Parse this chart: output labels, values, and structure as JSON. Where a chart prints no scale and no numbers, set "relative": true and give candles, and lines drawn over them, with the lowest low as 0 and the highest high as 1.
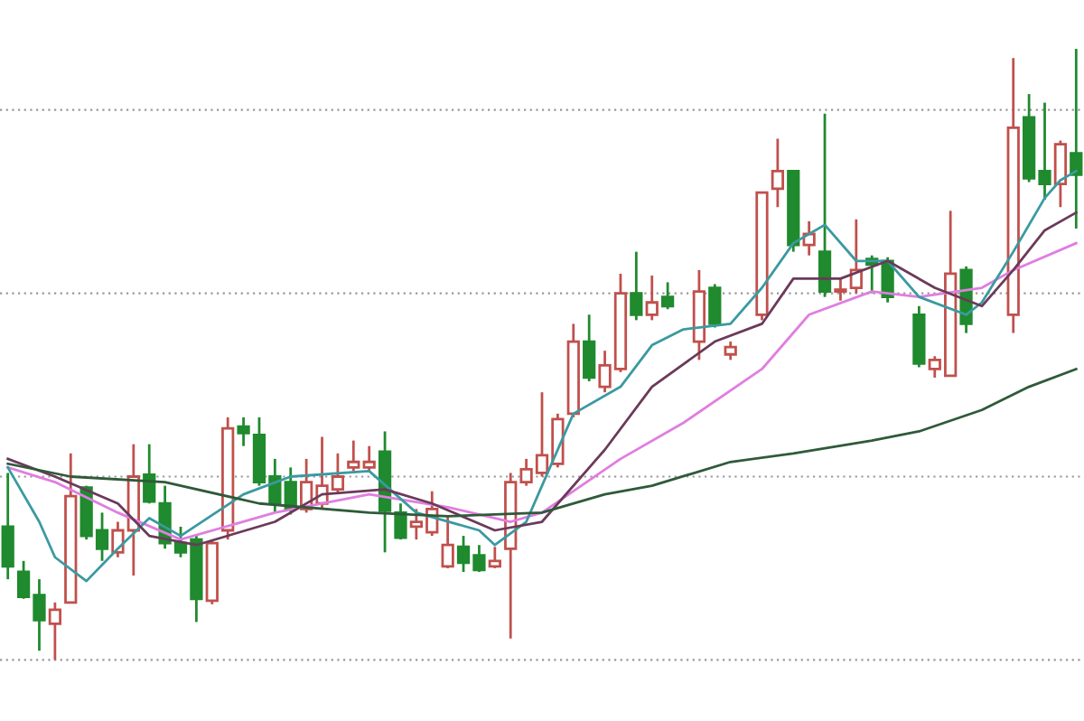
{
  "chart_data": {
    "type": "candlestick",
    "relative": true,
    "grid": "y",
    "categories": [
      null,
      null,
      null,
      null,
      null,
      null,
      null,
      null,
      null,
      null,
      null,
      null,
      null,
      null,
      null,
      null,
      null,
      null,
      null,
      null,
      null,
      null,
      null,
      null,
      null,
      null,
      null,
      null,
      null,
      null,
      null,
      null,
      null,
      null,
      null,
      null,
      null,
      null,
      null,
      null,
      null,
      null,
      null,
      null,
      null,
      null,
      null,
      null,
      null,
      null,
      null,
      null,
      null,
      null,
      null,
      null,
      null,
      null,
      null,
      null,
      null,
      null,
      null,
      null,
      null,
      null,
      null,
      null,
      null
    ],
    "ohlc": [
      [
        0.218,
        0.306,
        0.132,
        0.153
      ],
      [
        0.144,
        0.162,
        0.1,
        0.103
      ],
      [
        0.106,
        0.132,
        0.015,
        0.065
      ],
      [
        0.059,
        0.094,
        0,
        0.082
      ],
      [
        0.094,
        0.338,
        0.094,
        0.268
      ],
      [
        0.282,
        0.285,
        0.197,
        0.203
      ],
      [
        0.212,
        0.241,
        0.162,
        0.182
      ],
      [
        0.176,
        0.226,
        0.168,
        0.212
      ],
      [
        0.212,
        0.353,
        0.138,
        0.3
      ],
      [
        0.303,
        0.353,
        0.256,
        0.259
      ],
      [
        0.256,
        0.285,
        0.182,
        0.191
      ],
      [
        0.191,
        0.218,
        0.168,
        0.176
      ],
      [
        0.197,
        0.203,
        0.062,
        0.1
      ],
      [
        0.097,
        0.197,
        0.091,
        0.191
      ],
      [
        0.212,
        0.397,
        0.197,
        0.379
      ],
      [
        0.382,
        0.397,
        0.35,
        0.371
      ],
      [
        0.368,
        0.397,
        0.285,
        0.291
      ],
      [
        0.3,
        0.329,
        0.241,
        0.256
      ],
      [
        0.291,
        0.315,
        0.238,
        0.247
      ],
      [
        0.247,
        0.329,
        0.241,
        0.291
      ],
      [
        0.256,
        0.365,
        0.247,
        0.285
      ],
      [
        0.279,
        0.338,
        0.271,
        0.3
      ],
      [
        0.315,
        0.359,
        0.309,
        0.324
      ],
      [
        0.315,
        0.35,
        0.309,
        0.324
      ],
      [
        0.341,
        0.374,
        0.176,
        0.244
      ],
      [
        0.241,
        0.256,
        0.197,
        0.2
      ],
      [
        0.218,
        0.247,
        0.197,
        0.226
      ],
      [
        0.209,
        0.276,
        0.203,
        0.247
      ],
      [
        0.153,
        0.235,
        0.15,
        0.188
      ],
      [
        0.185,
        0.203,
        0.144,
        0.159
      ],
      [
        0.171,
        0.188,
        0.144,
        0.147
      ],
      [
        0.153,
        0.185,
        0.15,
        0.162
      ],
      [
        0.182,
        0.306,
        0.035,
        0.291
      ],
      [
        0.291,
        0.329,
        0.285,
        0.312
      ],
      [
        0.306,
        0.438,
        0.3,
        0.335
      ],
      [
        0.321,
        0.403,
        0.315,
        0.394
      ],
      [
        0.403,
        0.55,
        0.397,
        0.521
      ],
      [
        0.521,
        0.565,
        0.456,
        0.462
      ],
      [
        0.447,
        0.506,
        0.438,
        0.482
      ],
      [
        0.476,
        0.632,
        0.471,
        0.6
      ],
      [
        0.6,
        0.668,
        0.556,
        0.565
      ],
      [
        0.565,
        0.629,
        0.556,
        0.585
      ],
      [
        0.594,
        0.618,
        0.574,
        0.579
      ],
      null,
      [
        0.521,
        0.638,
        0.491,
        0.603
      ],
      [
        0.609,
        0.615,
        0.544,
        0.55
      ],
      [
        0.5,
        0.521,
        0.491,
        0.512
      ],
      null,
      [
        0.565,
        0.765,
        0.556,
        0.765
      ],
      [
        0.771,
        0.853,
        0.741,
        0.8
      ],
      [
        0.8,
        0.8,
        0.668,
        0.679
      ],
      [
        0.679,
        0.718,
        0.662,
        0.697
      ],
      [
        0.668,
        0.894,
        0.594,
        0.603
      ],
      [
        0.603,
        0.624,
        0.588,
        0.603
      ],
      [
        0.609,
        0.721,
        0.6,
        0.638
      ],
      [
        0.656,
        0.662,
        0.6,
        0.647
      ],
      [
        0.653,
        0.659,
        0.585,
        0.594
      ],
      null,
      [
        0.565,
        0.579,
        0.479,
        0.485
      ],
      [
        0.476,
        0.497,
        0.462,
        0.491
      ],
      [
        0.465,
        0.735,
        0.465,
        0.632
      ],
      [
        0.638,
        0.644,
        0.535,
        0.55
      ],
      null,
      null,
      [
        0.565,
        0.985,
        0.535,
        0.871
      ],
      [
        0.888,
        0.926,
        0.782,
        0.788
      ],
      [
        0.8,
        0.912,
        0.753,
        0.779
      ],
      [
        0.779,
        0.85,
        0.741,
        0.844
      ],
      [
        0.829,
        1,
        0.706,
        0.794
      ]
    ],
    "colors": [
      "#1f8a2e",
      "#1f8a2e",
      "#1f8a2e",
      "#c0504d",
      "#c0504d",
      "#1f8a2e",
      "#1f8a2e",
      "#c0504d",
      "#c0504d",
      "#1f8a2e",
      "#1f8a2e",
      "#1f8a2e",
      "#1f8a2e",
      "#c0504d",
      "#c0504d",
      "#1f8a2e",
      "#1f8a2e",
      "#1f8a2e",
      "#1f8a2e",
      "#c0504d",
      "#c0504d",
      "#c0504d",
      "#c0504d",
      "#c0504d",
      "#1f8a2e",
      "#1f8a2e",
      "#c0504d",
      "#c0504d",
      "#c0504d",
      "#1f8a2e",
      "#1f8a2e",
      "#c0504d",
      "#c0504d",
      "#c0504d",
      "#c0504d",
      "#c0504d",
      "#c0504d",
      "#1f8a2e",
      "#c0504d",
      "#c0504d",
      "#1f8a2e",
      "#c0504d",
      "#1f8a2e",
      null,
      "#c0504d",
      "#1f8a2e",
      "#c0504d",
      null,
      "#c0504d",
      "#c0504d",
      "#1f8a2e",
      "#c0504d",
      "#1f8a2e",
      "#c0504d",
      "#c0504d",
      "#1f8a2e",
      "#1f8a2e",
      null,
      "#1f8a2e",
      "#c0504d",
      "#c0504d",
      "#1f8a2e",
      null,
      null,
      "#c0504d",
      "#1f8a2e",
      "#1f8a2e",
      "#c0504d",
      "#1f8a2e"
    ],
    "series": [
      {
        "type": "line",
        "color": "#e07ee0",
        "values": [
          0.315,
          null,
          null,
          0.291,
          null,
          null,
          null,
          0.241,
          null,
          null,
          null,
          0.197,
          null,
          null,
          null,
          null,
          null,
          0.241,
          null,
          null,
          null,
          null,
          null,
          0.271,
          null,
          null,
          null,
          null,
          0.25,
          null,
          null,
          null,
          0.226,
          null,
          0.241,
          null,
          null,
          null,
          null,
          0.329,
          null,
          null,
          null,
          0.388,
          null,
          null,
          null,
          null,
          0.476,
          null,
          null,
          0.565,
          null,
          null,
          null,
          0.603,
          null,
          null,
          0.594,
          null,
          null,
          null,
          0.609,
          null,
          0.638,
          null,
          null,
          null,
          0.682
        ]
      },
      {
        "type": "line",
        "color": "#3a9aa0",
        "values": [
          0.315,
          null,
          0.226,
          0.168,
          null,
          0.129,
          null,
          0.182,
          null,
          0.232,
          null,
          0.203,
          null,
          null,
          null,
          0.271,
          null,
          null,
          0.3,
          null,
          null,
          null,
          null,
          0.309,
          null,
          null,
          0.241,
          null,
          null,
          null,
          0.212,
          0.188,
          null,
          0.226,
          0.285,
          null,
          0.403,
          null,
          null,
          0.447,
          null,
          0.515,
          null,
          0.541,
          null,
          null,
          0.55,
          null,
          0.609,
          null,
          0.682,
          null,
          0.712,
          null,
          0.653,
          null,
          0.653,
          null,
          0.594,
          null,
          null,
          0.565,
          0.585,
          null,
          0.668,
          null,
          0.756,
          0.785,
          0.8
        ]
      },
      {
        "type": "line",
        "color": "#6b3a5a",
        "values": [
          0.329,
          null,
          null,
          0.3,
          null,
          null,
          null,
          0.256,
          null,
          0.203,
          null,
          null,
          0.188,
          null,
          null,
          null,
          null,
          0.226,
          null,
          null,
          0.271,
          null,
          null,
          null,
          0.279,
          null,
          null,
          0.256,
          null,
          null,
          null,
          0.212,
          null,
          null,
          0.226,
          null,
          null,
          null,
          0.344,
          null,
          null,
          0.447,
          null,
          null,
          null,
          0.521,
          null,
          null,
          0.55,
          null,
          0.624,
          null,
          null,
          0.624,
          null,
          null,
          0.653,
          null,
          null,
          0.609,
          null,
          null,
          0.579,
          null,
          0.638,
          null,
          0.703,
          null,
          0.732
        ]
      },
      {
        "type": "line",
        "color": "#2f5a3a",
        "values": [
          0.321,
          null,
          null,
          null,
          0.3,
          null,
          null,
          null,
          null,
          null,
          0.291,
          null,
          null,
          null,
          null,
          null,
          0.256,
          null,
          null,
          null,
          null,
          null,
          null,
          0.241,
          null,
          null,
          null,
          null,
          0.235,
          null,
          null,
          null,
          null,
          null,
          0.241,
          null,
          null,
          null,
          0.271,
          null,
          null,
          0.285,
          null,
          null,
          null,
          null,
          0.324,
          null,
          null,
          null,
          0.338,
          null,
          null,
          null,
          null,
          0.359,
          null,
          null,
          0.374,
          null,
          null,
          null,
          0.409,
          null,
          null,
          0.447,
          null,
          null,
          0.476
        ]
      }
    ]
  }
}
